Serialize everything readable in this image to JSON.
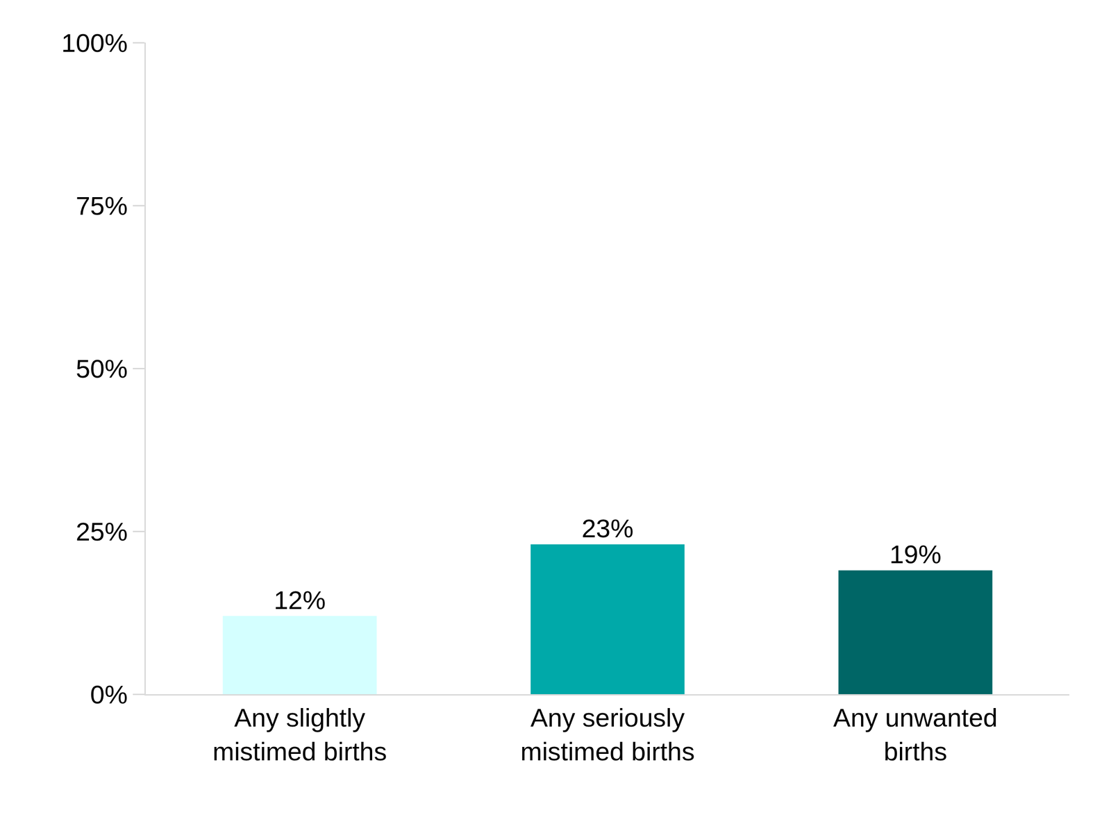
{
  "chart_data": {
    "type": "bar",
    "categories": [
      "Any slightly mistimed births",
      "Any seriously mistimed births",
      "Any unwanted births"
    ],
    "values": [
      12,
      23,
      19
    ],
    "value_labels": [
      "12%",
      "23%",
      "19%"
    ],
    "colors": [
      "#d4ffff",
      "#00a9a9",
      "#006666"
    ],
    "ylim": [
      0,
      100
    ],
    "yticks": [
      {
        "value": 0,
        "label": "0%"
      },
      {
        "value": 25,
        "label": "25%"
      },
      {
        "value": 50,
        "label": "50%"
      },
      {
        "value": 75,
        "label": "75%"
      },
      {
        "value": 100,
        "label": "100%"
      }
    ],
    "grid": false,
    "data_labels": true
  }
}
